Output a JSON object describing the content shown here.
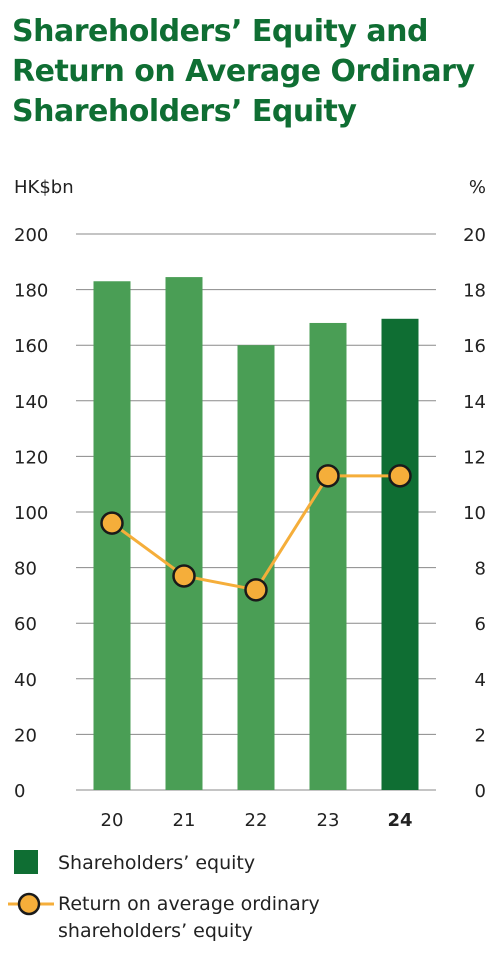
{
  "title_lines": [
    "Shareholders’ Equity and",
    "Return on Average Ordinary",
    "Shareholders’ Equity"
  ],
  "colors": {
    "title": "#0f6e33",
    "bar": "#4a9e55",
    "bar_highlight": "#0f6e33",
    "line": "#f5ae3a",
    "marker_fill": "#f5ae3a",
    "marker_stroke": "#1a1a1a",
    "grid": "#8a8a8a",
    "text": "#222222"
  },
  "chart_data": {
    "type": "bar",
    "categories": [
      "20",
      "21",
      "22",
      "23",
      "24"
    ],
    "highlight_category": "24",
    "left_axis": {
      "unit": "HK$bn",
      "ylim": [
        0,
        200
      ],
      "ticks": [
        0,
        20,
        40,
        60,
        80,
        100,
        120,
        140,
        160,
        180,
        200
      ]
    },
    "right_axis": {
      "unit": "%",
      "ylim": [
        0,
        20
      ],
      "ticks": [
        0,
        2,
        4,
        6,
        8,
        10,
        12,
        14,
        16,
        18,
        20
      ]
    },
    "grid": true,
    "legend_position": "bottom",
    "series": [
      {
        "name": "Shareholders’ equity",
        "type": "bar",
        "axis": "left",
        "values": [
          183,
          184.5,
          160,
          168,
          169.5
        ]
      },
      {
        "name": "Return on average ordinary shareholders’ equity",
        "type": "line",
        "axis": "right",
        "values": [
          9.6,
          7.7,
          7.2,
          11.3,
          11.3
        ]
      }
    ]
  },
  "legend": {
    "bar_label": "Shareholders’ equity",
    "line_label_lines": [
      "Return on average ordinary",
      "shareholders’ equity"
    ]
  }
}
